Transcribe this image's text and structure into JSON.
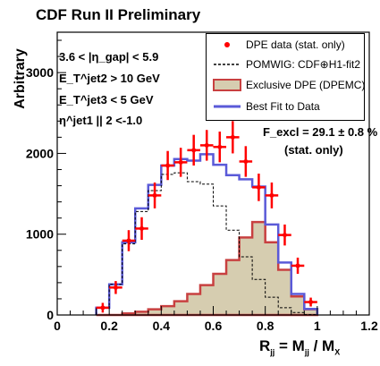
{
  "title": "CDF Run II Preliminary",
  "ylabel": "Arbitrary",
  "xlabel": "R",
  "xlabel_sub": "jj",
  "xlabel_rest": "= M",
  "xlabel_sub2": "jj",
  "xlabel_rest2": "/ M",
  "xlabel_sub3": "X",
  "cuts": [
    "3.6 < |η_gap| < 5.9",
    "E_T^jet2 > 10 GeV",
    "E_T^jet3 < 5 GeV",
    "η^jet1 || 2 <-1.0"
  ],
  "annotation": {
    "fit_result": "F_excl = 29.1 ± 0.8 %",
    "fit_note": "(stat. only)"
  },
  "legend": [
    {
      "label": "DPE data (stat. only)",
      "symbol": "data-point"
    },
    {
      "label": "POMWIG: CDF⊕H1-fit2",
      "symbol": "dashed-line"
    },
    {
      "label": "Exclusive DPE (DPEMC)",
      "symbol": "filled-hist"
    },
    {
      "label": "Best Fit to Data",
      "symbol": "blue-line"
    }
  ],
  "colors": {
    "data": "#ff0000",
    "pomwig": "#000000",
    "excl_fill": "#d6cdb0",
    "excl_line": "#c84040",
    "fit": "#5a5ad8"
  },
  "chart_data": {
    "type": "bar",
    "xlim": [
      0,
      1.2
    ],
    "ylim": [
      0,
      3500
    ],
    "xticks": [
      0,
      0.2,
      0.4,
      0.6,
      0.8,
      1,
      1.2
    ],
    "yticks": [
      0,
      1000,
      2000,
      3000
    ],
    "bin_width": 0.05,
    "bin_edges_start": 0.15,
    "series": [
      {
        "name": "DPE data (stat. only)",
        "x": [
          0.175,
          0.225,
          0.275,
          0.325,
          0.375,
          0.425,
          0.475,
          0.525,
          0.575,
          0.625,
          0.675,
          0.725,
          0.775,
          0.825,
          0.875,
          0.925,
          0.975
        ],
        "values": [
          90,
          340,
          920,
          1070,
          1480,
          1850,
          1890,
          2040,
          2100,
          2080,
          2200,
          1900,
          1580,
          1480,
          990,
          610,
          160
        ],
        "errors": [
          60,
          80,
          130,
          140,
          160,
          180,
          180,
          190,
          190,
          190,
          200,
          190,
          170,
          160,
          130,
          100,
          55
        ]
      },
      {
        "name": "POMWIG: CDF⊕H1-fit2",
        "x": [
          0.175,
          0.225,
          0.275,
          0.325,
          0.375,
          0.425,
          0.475,
          0.525,
          0.575,
          0.625,
          0.675,
          0.725,
          0.775,
          0.825,
          0.875,
          0.925,
          0.975
        ],
        "values": [
          90,
          380,
          880,
          1280,
          1540,
          1740,
          1760,
          1650,
          1620,
          1350,
          1050,
          720,
          440,
          220,
          90,
          30,
          5
        ]
      },
      {
        "name": "Exclusive DPE (DPEMC)",
        "x": [
          0.175,
          0.225,
          0.275,
          0.325,
          0.375,
          0.425,
          0.475,
          0.525,
          0.575,
          0.625,
          0.675,
          0.725,
          0.775,
          0.825,
          0.875,
          0.925,
          0.975
        ],
        "values": [
          0,
          0,
          20,
          40,
          70,
          110,
          170,
          260,
          370,
          510,
          680,
          960,
          1150,
          900,
          560,
          230,
          70
        ]
      },
      {
        "name": "Best Fit to Data",
        "x": [
          0.175,
          0.225,
          0.275,
          0.325,
          0.375,
          0.425,
          0.475,
          0.525,
          0.575,
          0.625,
          0.675,
          0.725,
          0.775,
          0.825,
          0.875,
          0.925,
          0.975
        ],
        "values": [
          90,
          380,
          900,
          1320,
          1610,
          1850,
          1930,
          1910,
          1990,
          1860,
          1730,
          1680,
          1590,
          1120,
          650,
          260,
          75
        ]
      }
    ]
  }
}
